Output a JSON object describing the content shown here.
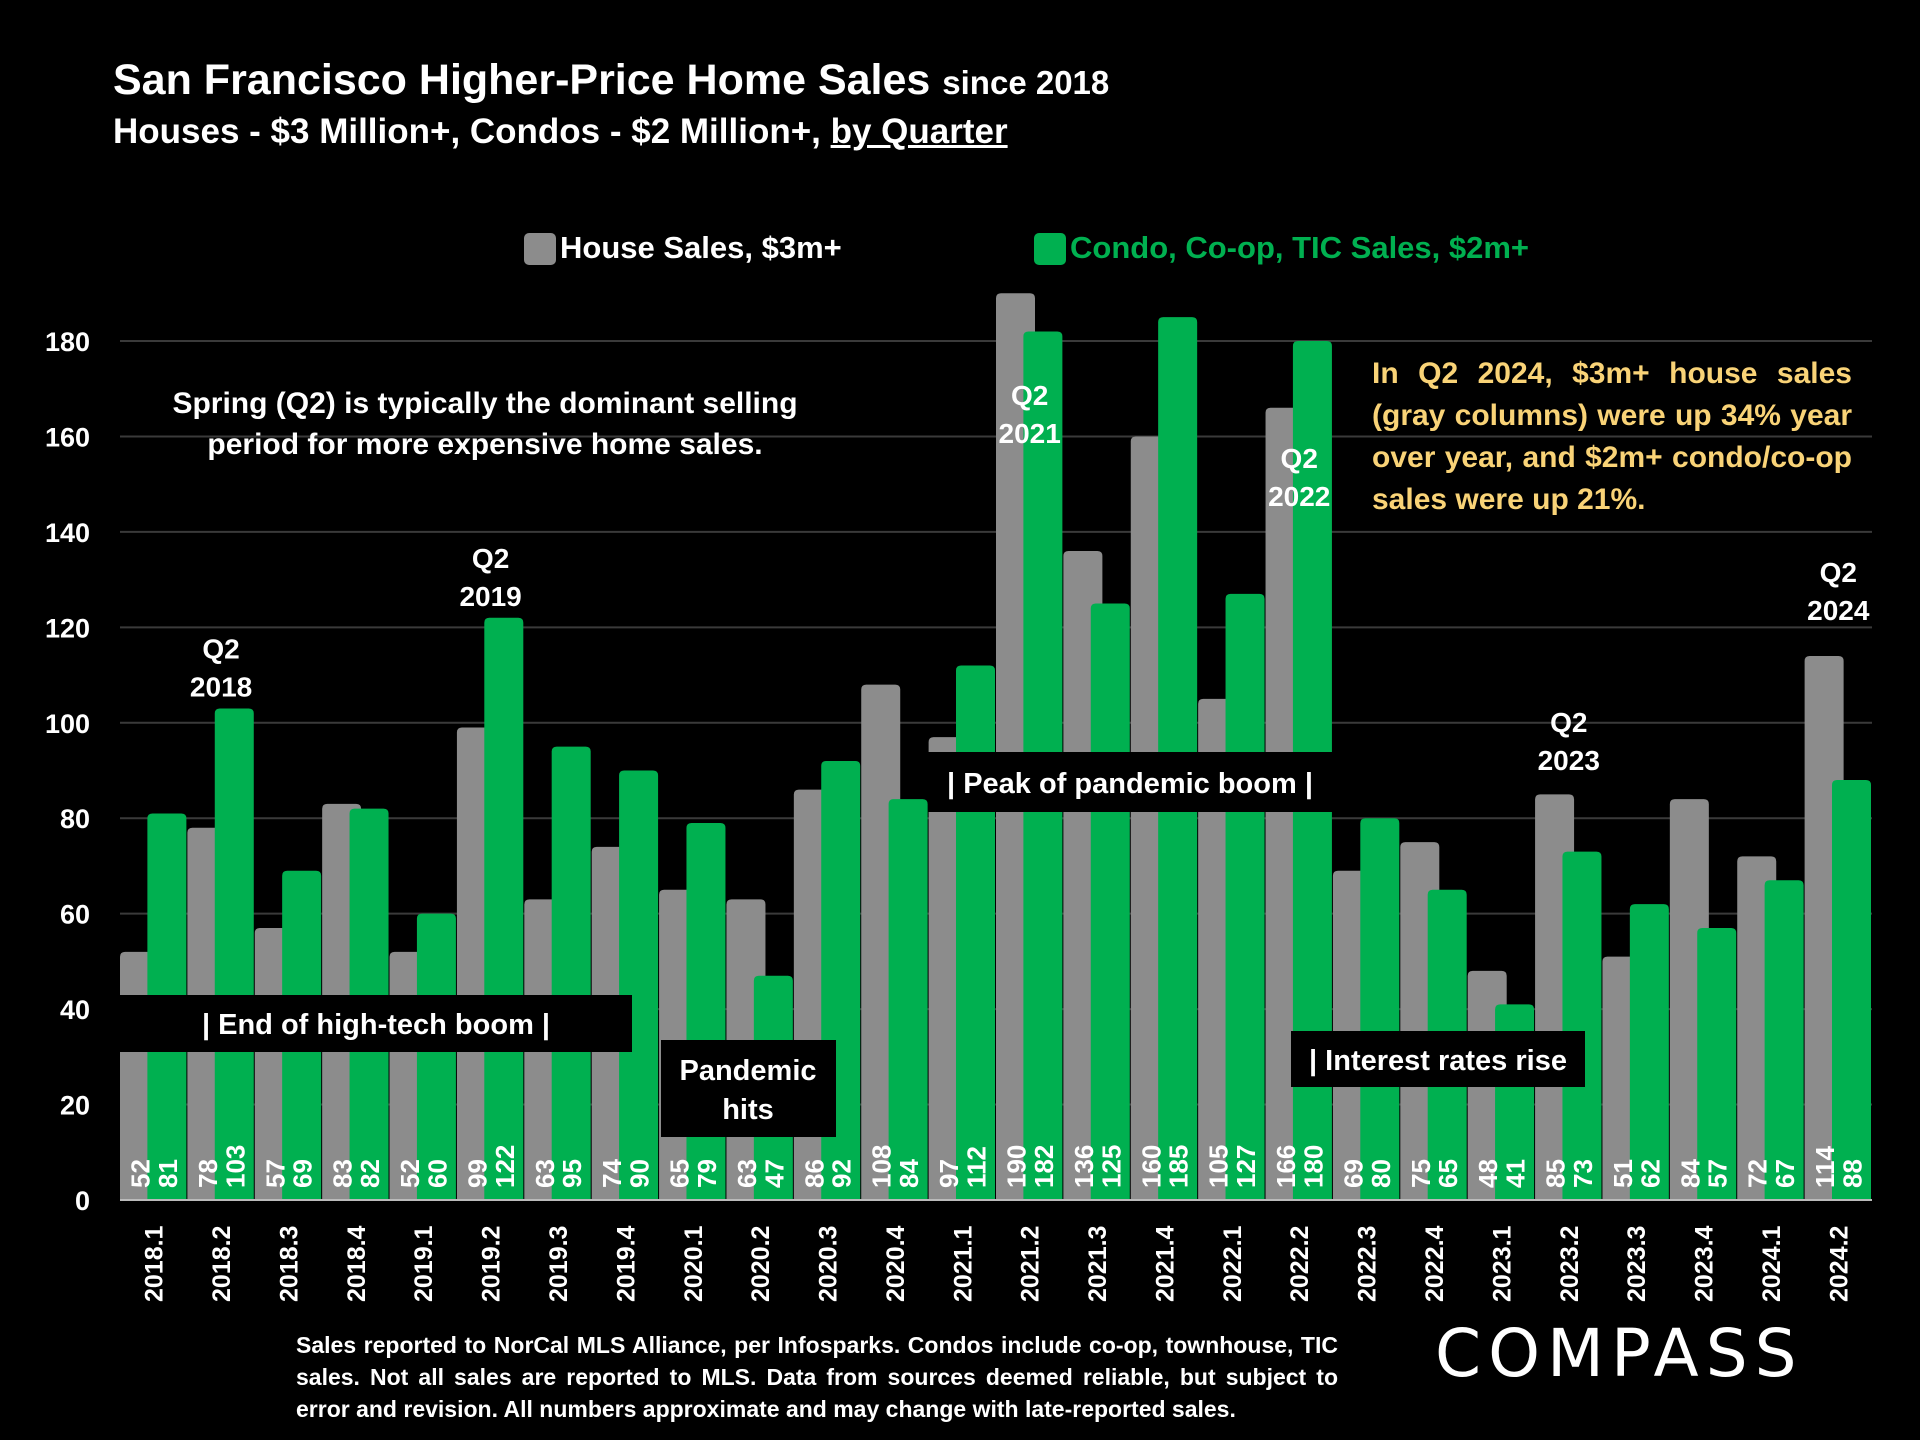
{
  "title": {
    "main": "San Francisco Higher-Price Home Sales",
    "suffix": "since 2018"
  },
  "subtitle": {
    "main": "Houses - $3 Million+, Condos - $2 Million+, ",
    "underlined": "by Quarter"
  },
  "note": "Spring (Q2) is typically the dominant selling period for more expensive home sales.",
  "callout": "In Q2 2024, $3m+ house sales (gray columns) were up 34% year over year, and $2m+ condo/co-op sales were up 21%.",
  "footnote": "Sales reported to NorCal MLS Alliance, per Infosparks. Condos include co-op, townhouse, TIC sales. Not all sales are reported to MLS. Data from sources deemed reliable, but subject to error and revision. All numbers approximate and may change with late-reported sales.",
  "logo": "COMPASS",
  "colors": {
    "house": "#8C8C8C",
    "condo": "#00B050",
    "background": "#000000",
    "grid": "#3A3A3A",
    "callout": "#F9D377"
  },
  "chart_data": {
    "type": "bar",
    "title": "San Francisco Higher-Price Home Sales since 2018",
    "ylim": [
      0,
      180
    ],
    "yticks": [
      0,
      20,
      40,
      60,
      80,
      100,
      120,
      140,
      160,
      180
    ],
    "categories": [
      "2018.1",
      "2018.2",
      "2018.3",
      "2018.4",
      "2019.1",
      "2019.2",
      "2019.3",
      "2019.4",
      "2020.1",
      "2020.2",
      "2020.3",
      "2020.4",
      "2021.1",
      "2021.2",
      "2021.3",
      "2021.4",
      "2022.1",
      "2022.2",
      "2022.3",
      "2022.4",
      "2023.1",
      "2023.2",
      "2023.3",
      "2023.4",
      "2024.1",
      "2024.2"
    ],
    "series": [
      {
        "name": "House Sales, $3m+",
        "values": [
          52,
          78,
          57,
          83,
          52,
          99,
          63,
          74,
          65,
          63,
          86,
          108,
          97,
          190,
          136,
          160,
          105,
          166,
          69,
          75,
          48,
          85,
          51,
          84,
          72,
          114
        ]
      },
      {
        "name": "Condo, Co-op, TIC Sales, $2m+",
        "values": [
          81,
          103,
          69,
          82,
          60,
          122,
          95,
          90,
          79,
          47,
          92,
          84,
          112,
          182,
          125,
          185,
          127,
          180,
          80,
          65,
          41,
          73,
          62,
          57,
          67,
          88
        ]
      }
    ],
    "legend": [
      "House Sales, $3m+",
      "Condo, Co-op, TIC Sales, $2m+"
    ],
    "q2_labels": [
      {
        "index": 1,
        "q": "Q2",
        "year": "2018"
      },
      {
        "index": 5,
        "q": "Q2",
        "year": "2019"
      },
      {
        "index": 13,
        "q": "Q2",
        "year": "2021"
      },
      {
        "index": 17,
        "q": "Q2",
        "year": "2022"
      },
      {
        "index": 21,
        "q": "Q2",
        "year": "2023"
      },
      {
        "index": 25,
        "q": "Q2",
        "year": "2024"
      }
    ],
    "annotations": [
      {
        "text": "|     End of high-tech boom     |"
      },
      {
        "text": "Pandemic hits"
      },
      {
        "text": "|  Peak of pandemic boom  |"
      },
      {
        "text": "| Interest rates rise"
      }
    ]
  }
}
